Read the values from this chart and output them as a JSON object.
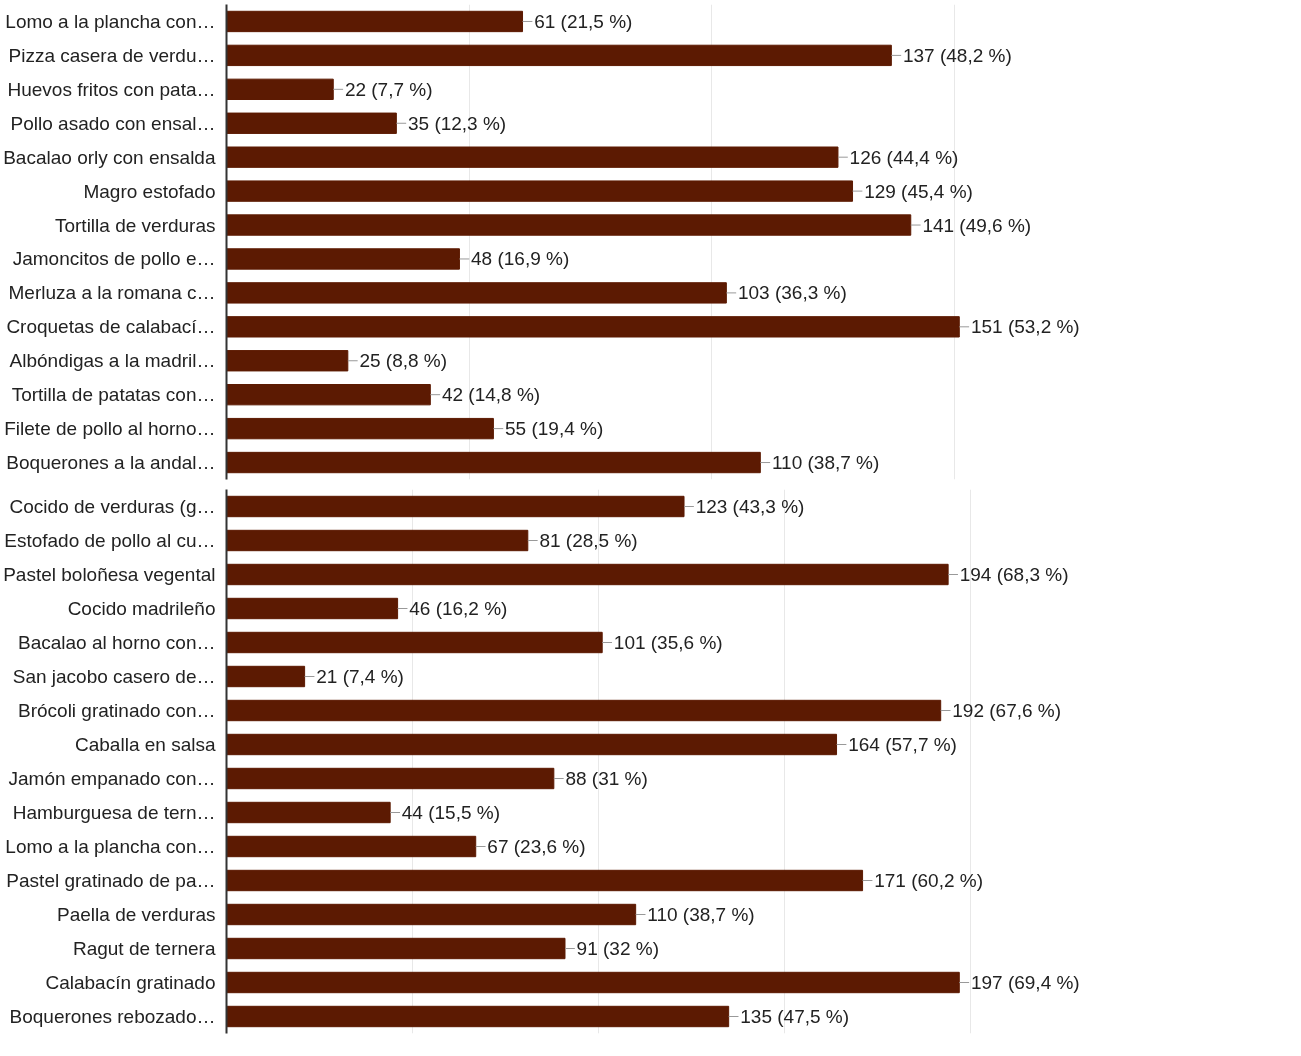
{
  "chart_data": [
    {
      "type": "bar",
      "orientation": "horizontal",
      "color": "#5c1a02",
      "grid": "x",
      "categories": [
        "Lomo a la plancha con…",
        "Pizza casera de verdu…",
        "Huevos fritos con pata…",
        "Pollo asado con ensal…",
        "Bacalao orly con ensalda",
        "Magro estofado",
        "Tortilla de verduras",
        "Jamoncitos de pollo e…",
        "Merluza a la romana c…",
        "Croquetas de calabací…",
        "Albóndigas a la madril…",
        "Tortilla de patatas con…",
        "Filete de pollo al horno…",
        "Boquerones a la andal…"
      ],
      "values": [
        61,
        137,
        22,
        35,
        126,
        129,
        141,
        48,
        103,
        151,
        25,
        42,
        55,
        110
      ],
      "value_labels": [
        "61 (21,5 %)",
        "137 (48,2 %)",
        "22 (7,7 %)",
        "35 (12,3 %)",
        "126 (44,4 %)",
        "129 (45,4 %)",
        "141 (49,6 %)",
        "48 (16,9 %)",
        "103 (36,3 %)",
        "151 (53,2 %)",
        "25 (8,8 %)",
        "42 (14,8 %)",
        "55 (19,4 %)",
        "110 (38,7 %)"
      ]
    },
    {
      "type": "bar",
      "orientation": "horizontal",
      "color": "#5c1a02",
      "grid": "x",
      "categories": [
        "Cocido de verduras (g…",
        "Estofado de pollo al cu…",
        "Pastel boloñesa vegental",
        "Cocido madrileño",
        "Bacalao al horno con…",
        "San jacobo casero de…",
        "Brócoli gratinado con…",
        "Caballa en salsa",
        "Jamón empanado con…",
        "Hamburguesa de tern…",
        "Lomo a la plancha con…",
        "Pastel gratinado de pa…",
        "Paella de verduras",
        "Ragut de ternera",
        "Calabacín gratinado",
        "Boquerones rebozado…"
      ],
      "values": [
        123,
        81,
        194,
        46,
        101,
        21,
        192,
        164,
        88,
        44,
        67,
        171,
        110,
        91,
        197,
        135
      ],
      "value_labels": [
        "123 (43,3 %)",
        "81 (28,5 %)",
        "194 (68,3 %)",
        "46 (16,2 %)",
        "101 (35,6 %)",
        "21 (7,4 %)",
        "192 (67,6 %)",
        "164 (57,7 %)",
        "88 (31 %)",
        "44 (15,5 %)",
        "67 (23,6 %)",
        "171 (60,2 %)",
        "110 (38,7 %)",
        "91 (32 %)",
        "197 (69,4 %)",
        "135 (47,5 %)"
      ]
    }
  ]
}
